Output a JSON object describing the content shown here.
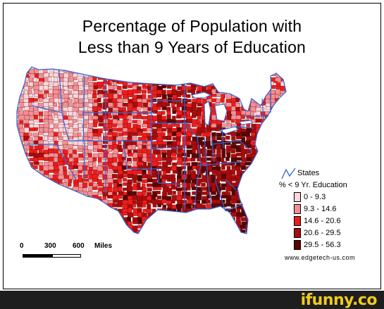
{
  "title": {
    "line1": "Percentage of Population with",
    "line2": "Less than 9 Years of Education"
  },
  "legend": {
    "states_label": "States",
    "subtitle": "% < 9 Yr. Education",
    "classes": [
      {
        "label": "0 - 9.3",
        "color": "#fdd7dc"
      },
      {
        "label": "9.3 - 14.6",
        "color": "#f58f95"
      },
      {
        "label": "14.6 - 20.6",
        "color": "#ee1c1c"
      },
      {
        "label": "20.6 - 29.5",
        "color": "#a80c0c"
      },
      {
        "label": "29.5 - 56.3",
        "color": "#570505"
      }
    ]
  },
  "scale_bar": {
    "ticks": [
      "0",
      "300",
      "600"
    ],
    "unit": "Miles"
  },
  "credit": "www.edgetech-us.com",
  "watermark": "ifunny.co",
  "colors": {
    "state_border": "#2f64d6",
    "county_border": "#5a0000"
  }
}
